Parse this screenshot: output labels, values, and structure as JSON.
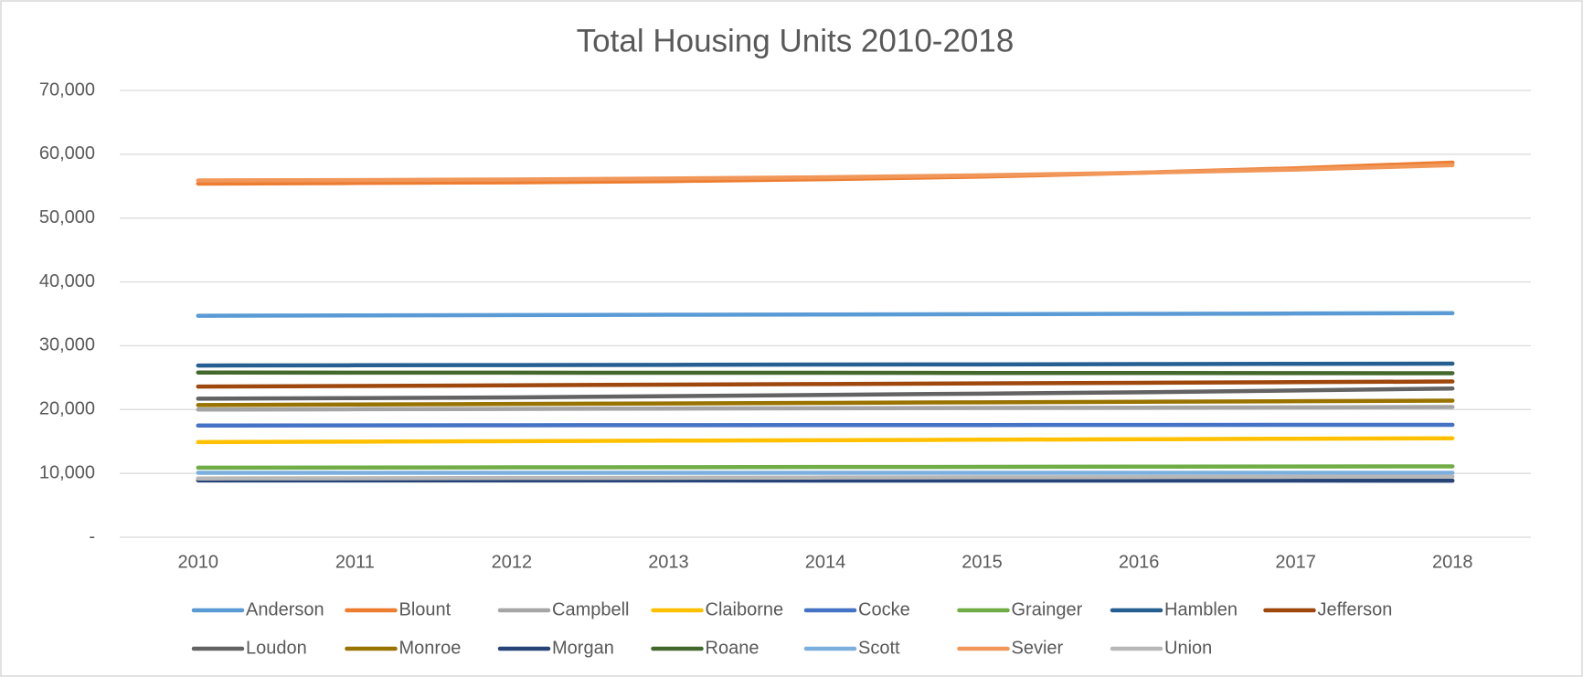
{
  "chart_data": {
    "type": "line",
    "title": "Total Housing Units 2010-2018",
    "categories": [
      "2010",
      "2011",
      "2012",
      "2013",
      "2014",
      "2015",
      "2016",
      "2017",
      "2018"
    ],
    "series": [
      {
        "name": "Anderson",
        "color": "#5b9bd5",
        "values": [
          34700,
          34750,
          34800,
          34850,
          34900,
          34950,
          35000,
          35050,
          35100
        ]
      },
      {
        "name": "Blount",
        "color": "#ed7d31",
        "values": [
          55400,
          55500,
          55600,
          55800,
          56100,
          56500,
          57100,
          57800,
          58700
        ]
      },
      {
        "name": "Campbell",
        "color": "#a5a5a5",
        "values": [
          20000,
          20050,
          20100,
          20150,
          20200,
          20250,
          20300,
          20350,
          20400
        ]
      },
      {
        "name": "Claiborne",
        "color": "#ffc000",
        "values": [
          14900,
          14980,
          15050,
          15130,
          15200,
          15280,
          15350,
          15430,
          15500
        ]
      },
      {
        "name": "Cocke",
        "color": "#4472c4",
        "values": [
          17500,
          17520,
          17540,
          17560,
          17570,
          17580,
          17590,
          17600,
          17600
        ]
      },
      {
        "name": "Grainger",
        "color": "#70ad47",
        "values": [
          10900,
          10920,
          10950,
          10970,
          11000,
          11020,
          11050,
          11080,
          11100
        ]
      },
      {
        "name": "Hamblen",
        "color": "#255e91",
        "values": [
          26900,
          26940,
          26970,
          27010,
          27050,
          27080,
          27120,
          27160,
          27200
        ]
      },
      {
        "name": "Jefferson",
        "color": "#9e480e",
        "values": [
          23600,
          23700,
          23800,
          23900,
          24000,
          24100,
          24200,
          24300,
          24400
        ]
      },
      {
        "name": "Loudon",
        "color": "#636363",
        "values": [
          21700,
          21800,
          21900,
          22100,
          22300,
          22500,
          22700,
          23000,
          23300
        ]
      },
      {
        "name": "Monroe",
        "color": "#997300",
        "values": [
          20700,
          20790,
          20880,
          20960,
          21050,
          21140,
          21230,
          21310,
          21400
        ]
      },
      {
        "name": "Morgan",
        "color": "#264478",
        "values": [
          8900,
          8900,
          8890,
          8890,
          8880,
          8880,
          8870,
          8870,
          8860
        ]
      },
      {
        "name": "Roane",
        "color": "#43682b",
        "values": [
          25800,
          25790,
          25780,
          25770,
          25760,
          25740,
          25730,
          25710,
          25700
        ]
      },
      {
        "name": "Scott",
        "color": "#7cafdd",
        "values": [
          10100,
          10100,
          10100,
          10100,
          10100,
          10100,
          10100,
          10100,
          10100
        ]
      },
      {
        "name": "Sevier",
        "color": "#f1975a",
        "values": [
          55900,
          55950,
          56050,
          56200,
          56400,
          56700,
          57100,
          57600,
          58300
        ]
      },
      {
        "name": "Union",
        "color": "#b7b7b7",
        "values": [
          9200,
          9240,
          9280,
          9310,
          9350,
          9390,
          9420,
          9460,
          9500
        ]
      }
    ],
    "ylim": [
      0,
      70000
    ],
    "yticks": [
      {
        "value": 0,
        "label": "-"
      },
      {
        "value": 10000,
        "label": "10,000"
      },
      {
        "value": 20000,
        "label": "20,000"
      },
      {
        "value": 30000,
        "label": "30,000"
      },
      {
        "value": 40000,
        "label": "40,000"
      },
      {
        "value": 50000,
        "label": "50,000"
      },
      {
        "value": 60000,
        "label": "60,000"
      },
      {
        "value": 70000,
        "label": "70,000"
      }
    ],
    "grid": true,
    "legend": "bottom"
  }
}
